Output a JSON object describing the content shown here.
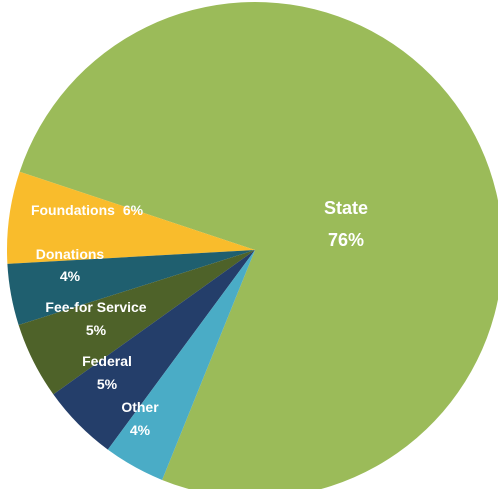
{
  "chart_data": {
    "type": "pie",
    "title": "",
    "slices": [
      {
        "label": "State",
        "value_text": "76%",
        "value": 76,
        "color": "#9bbb59"
      },
      {
        "label": "Foundations",
        "value_text": "6%",
        "value": 6,
        "color": "#f9bc2c"
      },
      {
        "label": "Donations",
        "value_text": "4%",
        "value": 4,
        "color": "#1f5f6f"
      },
      {
        "label": "Fee-for Service",
        "value_text": "5%",
        "value": 5,
        "color": "#4e6229"
      },
      {
        "label": "Federal",
        "value_text": "5%",
        "value": 5,
        "color": "#243e6a"
      },
      {
        "label": "Other",
        "value_text": "4%",
        "value": 4,
        "color": "#4aacc6"
      }
    ],
    "legend": "none",
    "data_labels": "inside"
  }
}
